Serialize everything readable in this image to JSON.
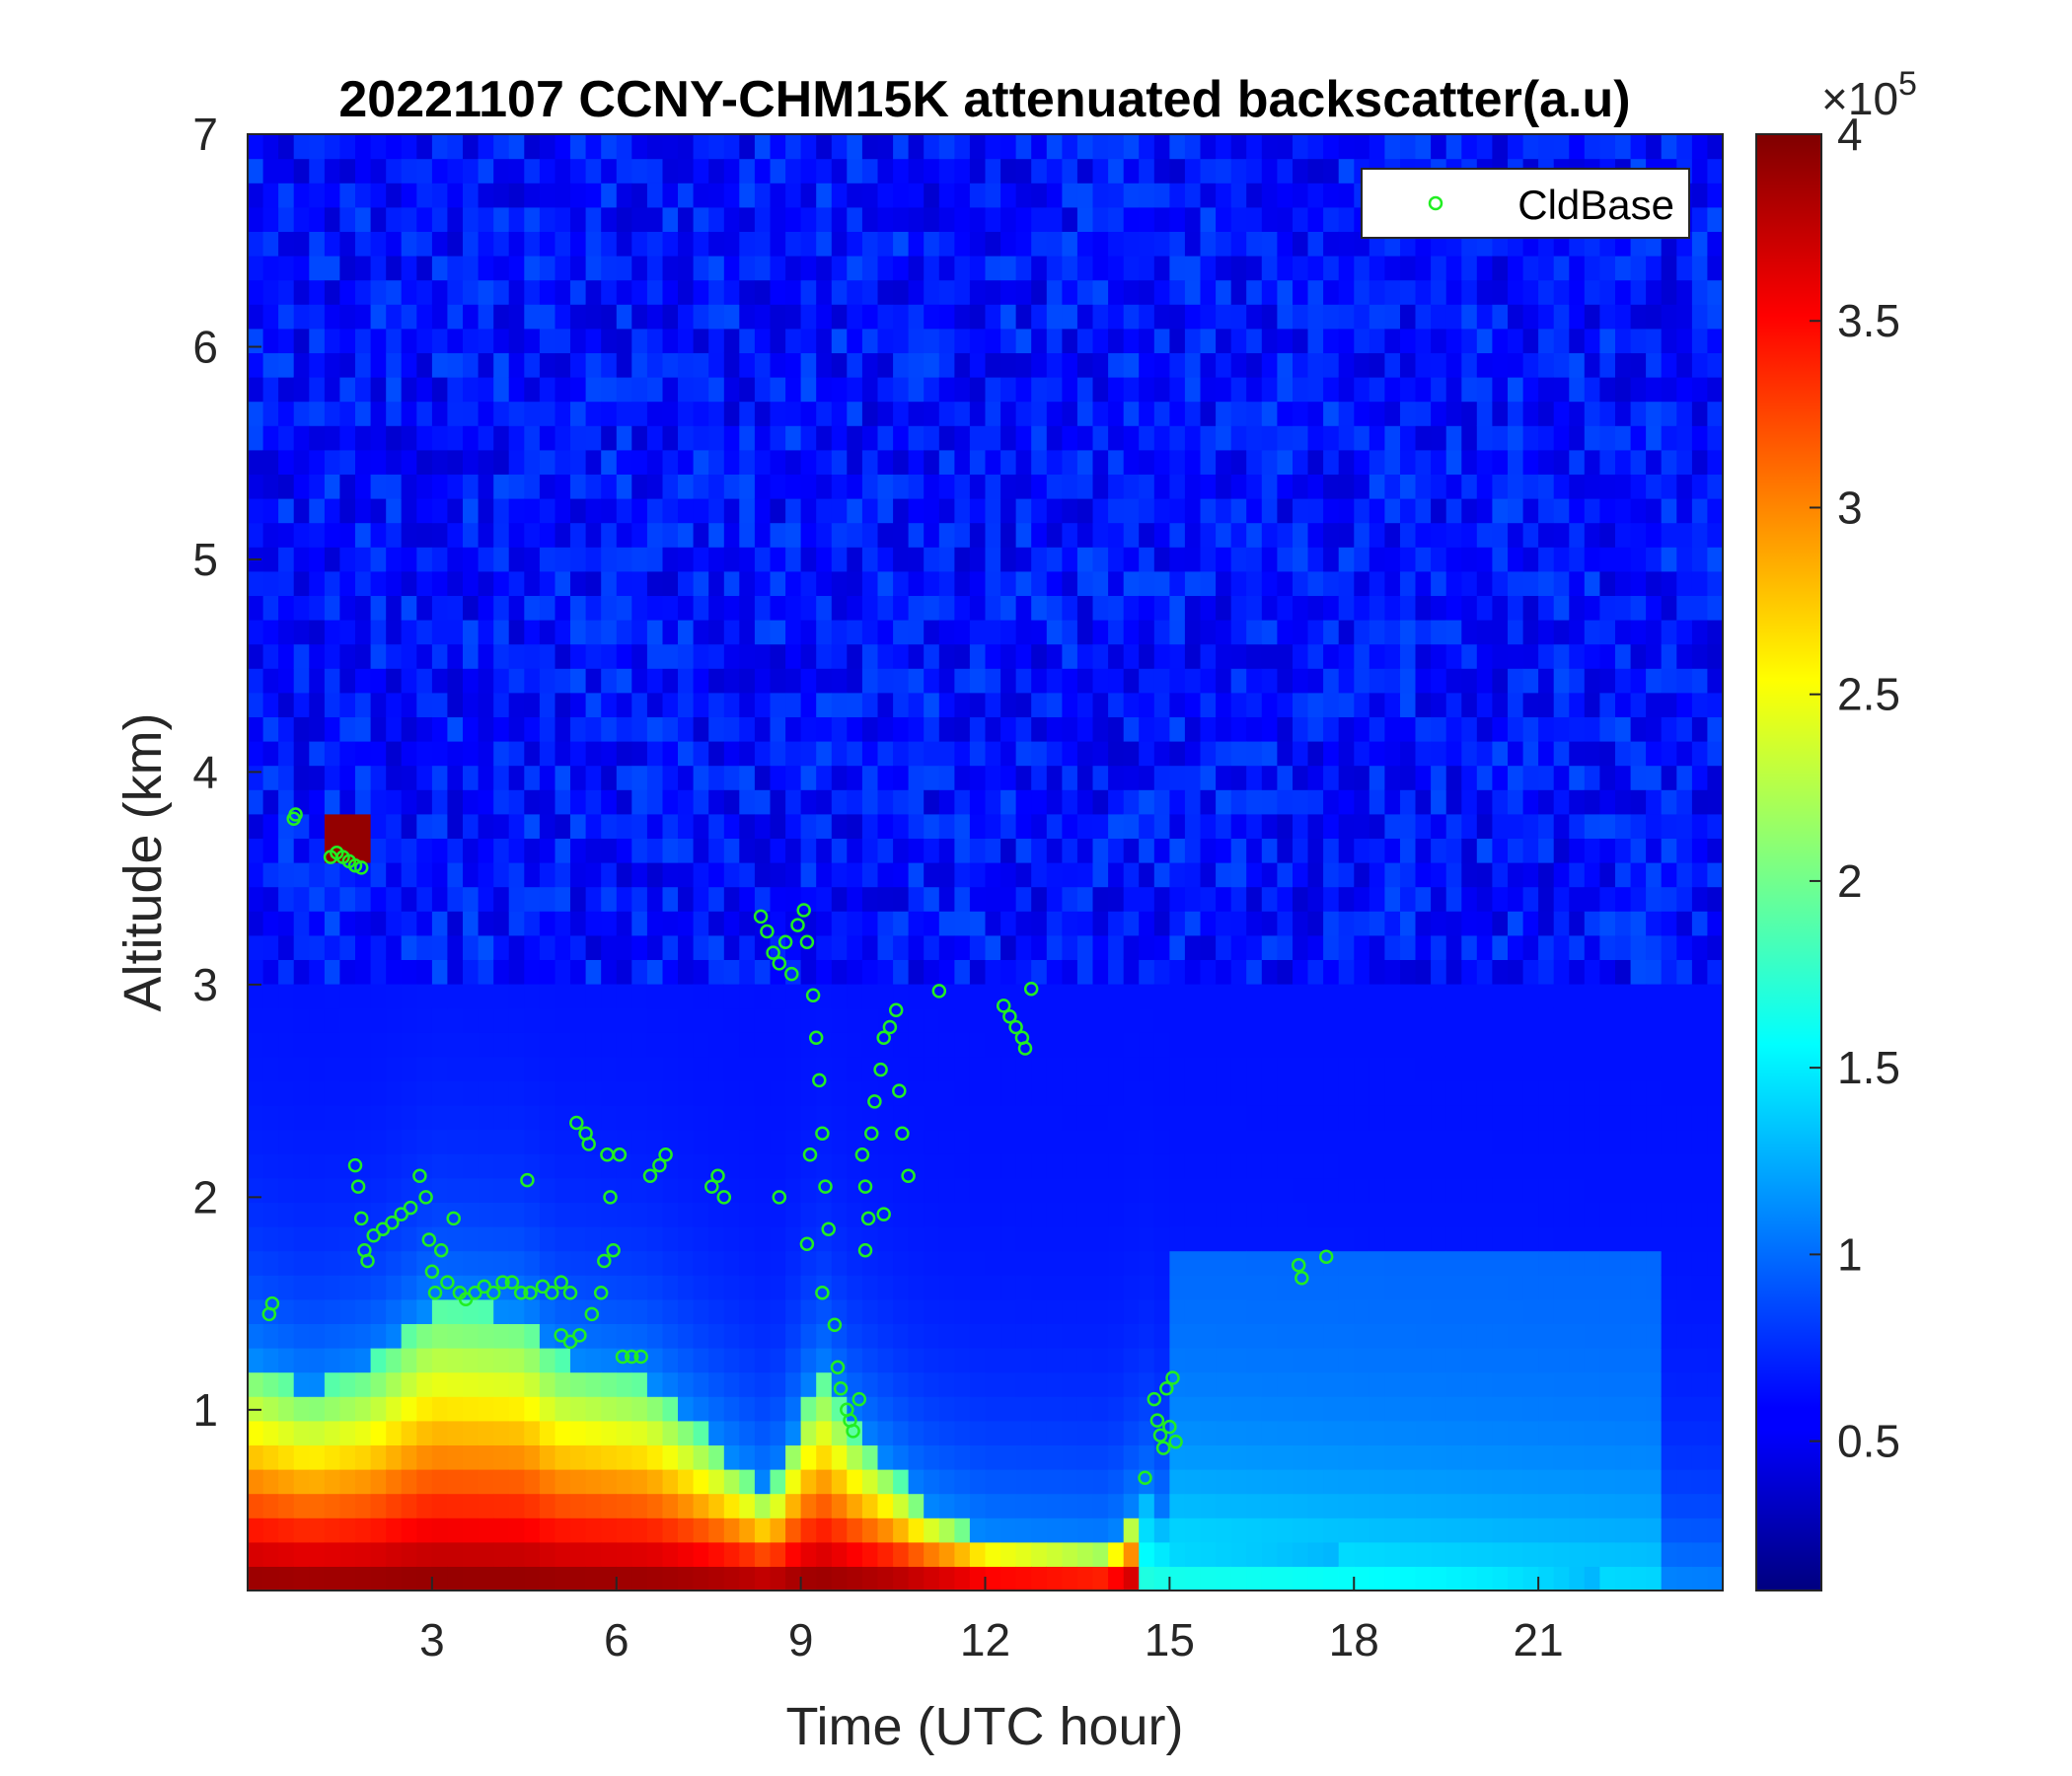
{
  "chart_data": {
    "type": "heatmap",
    "title": "20221107 CCNY-CHM15K attenuated backscatter(a.u)",
    "xlabel": "Time (UTC hour)",
    "ylabel": "Altitude (km)",
    "xlim": [
      0,
      24
    ],
    "ylim": [
      0.15,
      7
    ],
    "x_ticks": [
      3,
      6,
      9,
      12,
      15,
      18,
      21
    ],
    "y_ticks": [
      1,
      2,
      3,
      4,
      5,
      6,
      7
    ],
    "colorbar": {
      "colormap": "jet",
      "clim": [
        0.1,
        4
      ],
      "ticks": [
        0.5,
        1,
        1.5,
        2,
        2.5,
        3,
        3.5,
        4
      ],
      "exponent_label": "×10",
      "exponent_power": "5"
    },
    "legend": {
      "entries": [
        "CldBase"
      ],
      "position": "top-right"
    },
    "series": [
      {
        "name": "CldBase",
        "marker": "o",
        "color": "#22ee22",
        "points": [
          [
            0.35,
            1.45
          ],
          [
            0.4,
            1.5
          ],
          [
            0.75,
            3.78
          ],
          [
            0.78,
            3.8
          ],
          [
            1.35,
            3.6
          ],
          [
            1.45,
            3.62
          ],
          [
            1.55,
            3.6
          ],
          [
            1.65,
            3.58
          ],
          [
            1.75,
            3.56
          ],
          [
            1.85,
            3.55
          ],
          [
            1.75,
            2.15
          ],
          [
            1.8,
            2.05
          ],
          [
            1.85,
            1.9
          ],
          [
            1.9,
            1.75
          ],
          [
            1.95,
            1.7
          ],
          [
            2.05,
            1.82
          ],
          [
            2.2,
            1.85
          ],
          [
            2.35,
            1.88
          ],
          [
            2.5,
            1.92
          ],
          [
            2.65,
            1.95
          ],
          [
            2.8,
            2.1
          ],
          [
            2.9,
            2.0
          ],
          [
            2.95,
            1.8
          ],
          [
            3.0,
            1.65
          ],
          [
            3.05,
            1.55
          ],
          [
            3.15,
            1.75
          ],
          [
            3.25,
            1.6
          ],
          [
            3.35,
            1.9
          ],
          [
            3.45,
            1.55
          ],
          [
            3.55,
            1.52
          ],
          [
            3.7,
            1.55
          ],
          [
            3.85,
            1.58
          ],
          [
            4.0,
            1.55
          ],
          [
            4.15,
            1.6
          ],
          [
            4.3,
            1.6
          ],
          [
            4.45,
            1.55
          ],
          [
            4.6,
            1.55
          ],
          [
            4.55,
            2.08
          ],
          [
            4.8,
            1.58
          ],
          [
            4.95,
            1.55
          ],
          [
            5.1,
            1.6
          ],
          [
            5.25,
            1.55
          ],
          [
            5.35,
            2.35
          ],
          [
            5.1,
            1.35
          ],
          [
            5.25,
            1.32
          ],
          [
            5.4,
            1.35
          ],
          [
            5.5,
            2.3
          ],
          [
            5.55,
            2.25
          ],
          [
            5.6,
            1.45
          ],
          [
            5.75,
            1.55
          ],
          [
            5.8,
            1.7
          ],
          [
            5.85,
            2.2
          ],
          [
            5.9,
            2.0
          ],
          [
            5.95,
            1.75
          ],
          [
            6.05,
            2.2
          ],
          [
            6.1,
            1.25
          ],
          [
            6.25,
            1.25
          ],
          [
            6.4,
            1.25
          ],
          [
            6.55,
            2.1
          ],
          [
            6.7,
            2.15
          ],
          [
            6.8,
            2.2
          ],
          [
            7.55,
            2.05
          ],
          [
            7.65,
            2.1
          ],
          [
            7.75,
            2.0
          ],
          [
            8.65,
            2.0
          ],
          [
            8.35,
            3.32
          ],
          [
            8.45,
            3.25
          ],
          [
            8.55,
            3.15
          ],
          [
            8.65,
            3.1
          ],
          [
            8.75,
            3.2
          ],
          [
            8.85,
            3.05
          ],
          [
            8.95,
            3.28
          ],
          [
            9.05,
            3.35
          ],
          [
            9.1,
            3.2
          ],
          [
            9.2,
            2.95
          ],
          [
            9.25,
            2.75
          ],
          [
            9.3,
            2.55
          ],
          [
            9.35,
            2.3
          ],
          [
            9.15,
            2.2
          ],
          [
            9.1,
            1.78
          ],
          [
            9.4,
            2.05
          ],
          [
            9.45,
            1.85
          ],
          [
            9.35,
            1.55
          ],
          [
            9.55,
            1.4
          ],
          [
            9.6,
            1.2
          ],
          [
            9.65,
            1.1
          ],
          [
            9.75,
            1.0
          ],
          [
            9.8,
            0.95
          ],
          [
            9.85,
            0.9
          ],
          [
            9.95,
            1.05
          ],
          [
            10.0,
            2.2
          ],
          [
            10.05,
            2.05
          ],
          [
            10.1,
            1.9
          ],
          [
            10.05,
            1.75
          ],
          [
            10.15,
            2.3
          ],
          [
            10.2,
            2.45
          ],
          [
            10.3,
            2.6
          ],
          [
            10.35,
            2.75
          ],
          [
            10.45,
            2.8
          ],
          [
            10.55,
            2.88
          ],
          [
            10.35,
            1.92
          ],
          [
            10.6,
            2.5
          ],
          [
            10.65,
            2.3
          ],
          [
            10.75,
            2.1
          ],
          [
            11.25,
            2.97
          ],
          [
            12.3,
            2.9
          ],
          [
            12.4,
            2.85
          ],
          [
            12.5,
            2.8
          ],
          [
            12.6,
            2.75
          ],
          [
            12.65,
            2.7
          ],
          [
            12.75,
            2.98
          ],
          [
            14.6,
            0.68
          ],
          [
            14.75,
            1.05
          ],
          [
            14.8,
            0.95
          ],
          [
            14.85,
            0.88
          ],
          [
            14.9,
            0.82
          ],
          [
            14.95,
            1.1
          ],
          [
            15.0,
            0.92
          ],
          [
            15.05,
            1.15
          ],
          [
            15.1,
            0.85
          ],
          [
            17.1,
            1.68
          ],
          [
            17.15,
            1.62
          ],
          [
            17.55,
            1.72
          ]
        ]
      }
    ]
  }
}
